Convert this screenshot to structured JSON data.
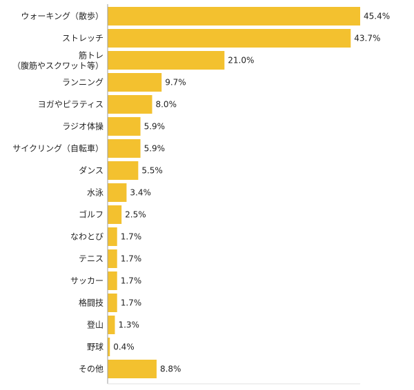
{
  "chart_data": {
    "type": "bar",
    "orientation": "horizontal",
    "categories": [
      [
        "ウォーキング（散歩）"
      ],
      [
        "ストレッチ"
      ],
      [
        "筋トレ",
        "（腹筋やスクワット等）"
      ],
      [
        "ランニング"
      ],
      [
        "ヨガやピラティス"
      ],
      [
        "ラジオ体操"
      ],
      [
        "サイクリング（自転車）"
      ],
      [
        "ダンス"
      ],
      [
        "水泳"
      ],
      [
        "ゴルフ"
      ],
      [
        "なわとび"
      ],
      [
        "テニス"
      ],
      [
        "サッカー"
      ],
      [
        "格闘技"
      ],
      [
        "登山"
      ],
      [
        "野球"
      ],
      [
        "その他"
      ]
    ],
    "values": [
      45.4,
      43.7,
      21.0,
      9.7,
      8.0,
      5.9,
      5.9,
      5.5,
      3.4,
      2.5,
      1.7,
      1.7,
      1.7,
      1.7,
      1.3,
      0.4,
      8.8
    ],
    "value_labels": [
      "45.4%",
      "43.7%",
      "21.0%",
      "9.7%",
      "8.0%",
      "5.9%",
      "5.9%",
      "5.5%",
      "3.4%",
      "2.5%",
      "1.7%",
      "1.7%",
      "1.7%",
      "1.7%",
      "1.3%",
      "0.4%",
      "8.8%"
    ],
    "title": "",
    "xlabel": "",
    "ylabel": "",
    "xlim": [
      0,
      50
    ],
    "grid": false,
    "legend": "none",
    "bar_color": "#F3C12F",
    "axis_color": "#9E9E9E",
    "text_color": "#222222"
  }
}
